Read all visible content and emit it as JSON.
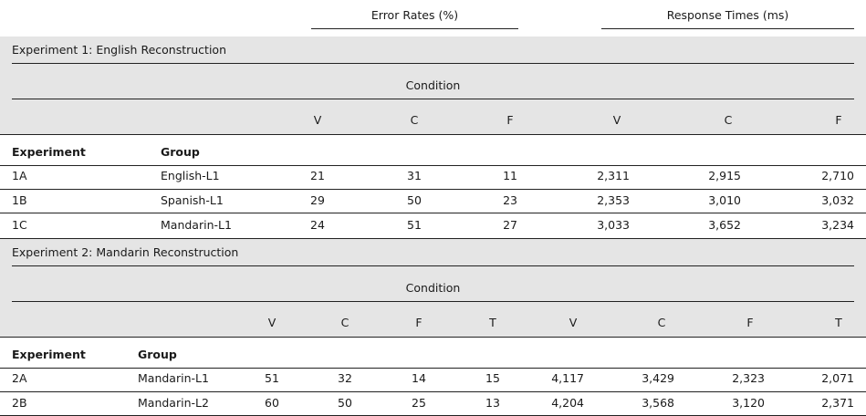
{
  "header": {
    "error_rates": "Error Rates (%)",
    "response_times": "Response Times (ms)"
  },
  "exp1": {
    "title": "Experiment 1: English Reconstruction",
    "condition": "Condition",
    "cols": [
      "V",
      "C",
      "F",
      "V",
      "C",
      "F"
    ],
    "head_experiment": "Experiment",
    "head_group": "Group",
    "rows": [
      {
        "exp": "1A",
        "group": "English-L1",
        "values": [
          "21",
          "31",
          "11",
          "2,311",
          "2,915",
          "2,710"
        ]
      },
      {
        "exp": "1B",
        "group": "Spanish-L1",
        "values": [
          "29",
          "50",
          "23",
          "2,353",
          "3,010",
          "3,032"
        ]
      },
      {
        "exp": "1C",
        "group": "Mandarin-L1",
        "values": [
          "24",
          "51",
          "27",
          "3,033",
          "3,652",
          "3,234"
        ]
      }
    ]
  },
  "exp2": {
    "title": "Experiment 2: Mandarin Reconstruction",
    "condition": "Condition",
    "cols": [
      "V",
      "C",
      "F",
      "T",
      "V",
      "C",
      "F",
      "T"
    ],
    "head_experiment": "Experiment",
    "head_group": "Group",
    "rows": [
      {
        "exp": "2A",
        "group": "Mandarin-L1",
        "values": [
          "51",
          "32",
          "14",
          "15",
          "4,117",
          "3,429",
          "2,323",
          "2,071"
        ]
      },
      {
        "exp": "2B",
        "group": "Mandarin-L2",
        "values": [
          "60",
          "50",
          "25",
          "13",
          "4,204",
          "3,568",
          "3,120",
          "2,371"
        ]
      }
    ]
  }
}
